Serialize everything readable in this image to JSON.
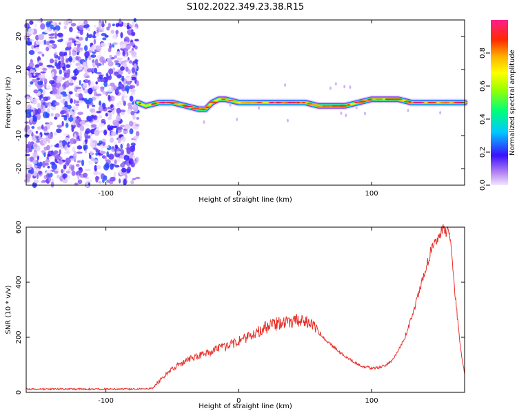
{
  "page": {
    "title": "S102.2022.349.23.38.R15"
  },
  "colors": {
    "line": "#e8302a",
    "frame": "#000000",
    "background": "#ffffff"
  },
  "chart_data": [
    {
      "type": "heatmap",
      "xlabel": "Height of straight line (km)",
      "ylabel": "Frequency (Hz)",
      "xlim": [
        -160,
        170
      ],
      "ylim": [
        -25,
        25
      ],
      "xticks": [
        -100,
        0,
        100
      ],
      "yticks": [
        -20,
        -10,
        0,
        10,
        20
      ],
      "colormap": "rainbow (purple → blue → cyan → green → yellow → orange → red → magenta)",
      "colorbar": {
        "label": "Normalized spectral amplitude",
        "range": [
          0,
          1
        ],
        "ticks": [
          0.0,
          0.2,
          0.4,
          0.6,
          0.8
        ]
      },
      "regions": [
        {
          "x_range": [
            -160,
            -76
          ],
          "description": "broadband noise, amplitude 0.0–0.3 across all frequencies"
        },
        {
          "x_range": [
            -76,
            170
          ],
          "description": "narrow tone near 0 Hz, amplitude up to 1.0"
        }
      ],
      "ridge": {
        "x": [
          -76,
          -70,
          -60,
          -50,
          -40,
          -30,
          -25,
          -20,
          -15,
          -10,
          0,
          10,
          20,
          30,
          40,
          50,
          60,
          70,
          80,
          90,
          100,
          110,
          120,
          130,
          140,
          150,
          160,
          170
        ],
        "freq": [
          0,
          -1,
          0,
          0,
          -1,
          -2,
          -2,
          0,
          1,
          1,
          0,
          0,
          0,
          0,
          0,
          0,
          -1,
          -1,
          -1,
          0,
          1,
          1,
          1,
          0,
          0,
          0,
          0,
          0
        ]
      }
    },
    {
      "type": "line",
      "xlabel": "Height of straight line (km)",
      "ylabel": "SNR (10 * v/v)",
      "xlim": [
        -160,
        170
      ],
      "ylim": [
        0,
        600
      ],
      "xticks": [
        -100,
        0,
        100
      ],
      "yticks": [
        0,
        200,
        400,
        600
      ],
      "series": [
        {
          "x": [
            -160,
            -140,
            -120,
            -100,
            -90,
            -80,
            -70,
            -65,
            -60,
            -55,
            -50,
            -45,
            -40,
            -35,
            -30,
            -25,
            -20,
            -15,
            -10,
            -5,
            0,
            5,
            10,
            15,
            20,
            25,
            30,
            35,
            40,
            45,
            50,
            55,
            60,
            65,
            70,
            75,
            80,
            85,
            90,
            95,
            100,
            105,
            110,
            115,
            120,
            125,
            130,
            135,
            140,
            145,
            150,
            155,
            158,
            160,
            162,
            165,
            168,
            170
          ],
          "y": [
            12,
            12,
            12,
            12,
            12,
            12,
            12,
            15,
            40,
            65,
            85,
            100,
            115,
            125,
            135,
            140,
            150,
            160,
            165,
            175,
            185,
            195,
            205,
            220,
            235,
            245,
            250,
            255,
            260,
            262,
            260,
            245,
            220,
            195,
            170,
            150,
            130,
            115,
            100,
            92,
            88,
            90,
            98,
            115,
            150,
            200,
            270,
            350,
            440,
            520,
            570,
            590,
            580,
            520,
            400,
            250,
            120,
            70
          ]
        }
      ]
    }
  ]
}
